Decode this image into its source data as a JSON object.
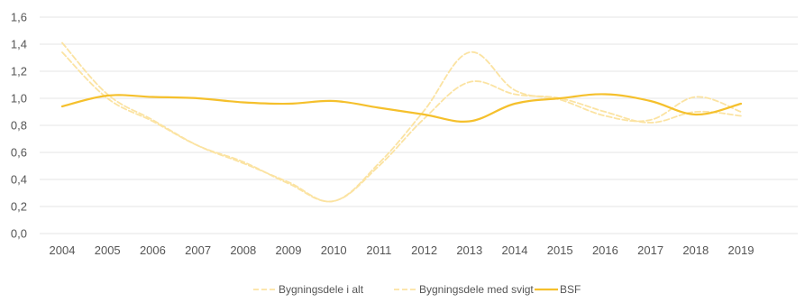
{
  "chart_data": {
    "type": "line",
    "title": "",
    "xlabel": "",
    "ylabel": "",
    "x": [
      "2004",
      "2005",
      "2006",
      "2007",
      "2008",
      "2009",
      "2010",
      "2011",
      "2012",
      "2013",
      "2014",
      "2015",
      "2016",
      "2017",
      "2018",
      "2019"
    ],
    "ylim": [
      0,
      1.6
    ],
    "yticks": [
      "0,0",
      "0,2",
      "0,4",
      "0,6",
      "0,8",
      "1,0",
      "1,2",
      "1,4",
      "1,6"
    ],
    "grid": true,
    "legend_position": "bottom",
    "series": [
      {
        "name": "Bygningsdele i alt",
        "color": "#fbe3a2",
        "style": "dashed",
        "values": [
          1.41,
          1.03,
          0.84,
          0.65,
          0.52,
          0.38,
          0.24,
          0.52,
          0.91,
          1.34,
          1.06,
          0.99,
          0.87,
          0.84,
          1.01,
          0.9
        ]
      },
      {
        "name": "Bygningsdele med svigt",
        "color": "#fbe3a2",
        "style": "dashed",
        "values": [
          1.34,
          1.0,
          0.83,
          0.65,
          0.53,
          0.37,
          0.24,
          0.5,
          0.85,
          1.12,
          1.03,
          1.0,
          0.9,
          0.82,
          0.9,
          0.87
        ]
      },
      {
        "name": "BSF",
        "color": "#f5c02c",
        "style": "solid",
        "values": [
          0.94,
          1.02,
          1.01,
          1.0,
          0.97,
          0.96,
          0.98,
          0.93,
          0.88,
          0.83,
          0.96,
          1.0,
          1.03,
          0.98,
          0.88,
          0.96
        ]
      }
    ]
  }
}
